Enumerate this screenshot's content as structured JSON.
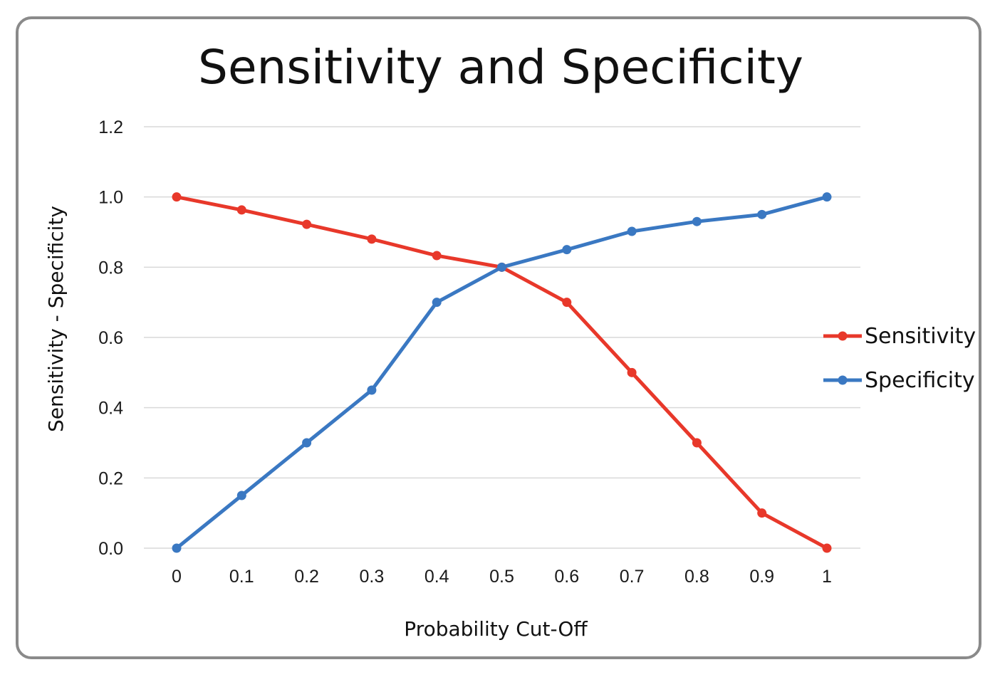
{
  "chart_data": {
    "type": "line",
    "title": "Sensitivity and Specificity",
    "xlabel": "Probability Cut-Off",
    "ylabel": "Sensitivity - Specificity",
    "categories": [
      "0",
      "0.1",
      "0.2",
      "0.3",
      "0.4",
      "0.5",
      "0.6",
      "0.7",
      "0.8",
      "0.9",
      "1"
    ],
    "ylim": [
      0,
      1.2
    ],
    "yticks": [
      "0.0",
      "0.2",
      "0.4",
      "0.6",
      "0.8",
      "1.0",
      "1.2"
    ],
    "grid": true,
    "legend_position": "right",
    "series": [
      {
        "name": "Sensitivity",
        "color": "#e8382a",
        "values": [
          1.0,
          0.963,
          0.922,
          0.88,
          0.833,
          0.8,
          0.7,
          0.5,
          0.3,
          0.1,
          0.0
        ]
      },
      {
        "name": "Specificity",
        "color": "#3a78c2",
        "values": [
          0.0,
          0.15,
          0.3,
          0.45,
          0.7,
          0.8,
          0.85,
          0.902,
          0.93,
          0.95,
          1.0
        ]
      }
    ]
  }
}
